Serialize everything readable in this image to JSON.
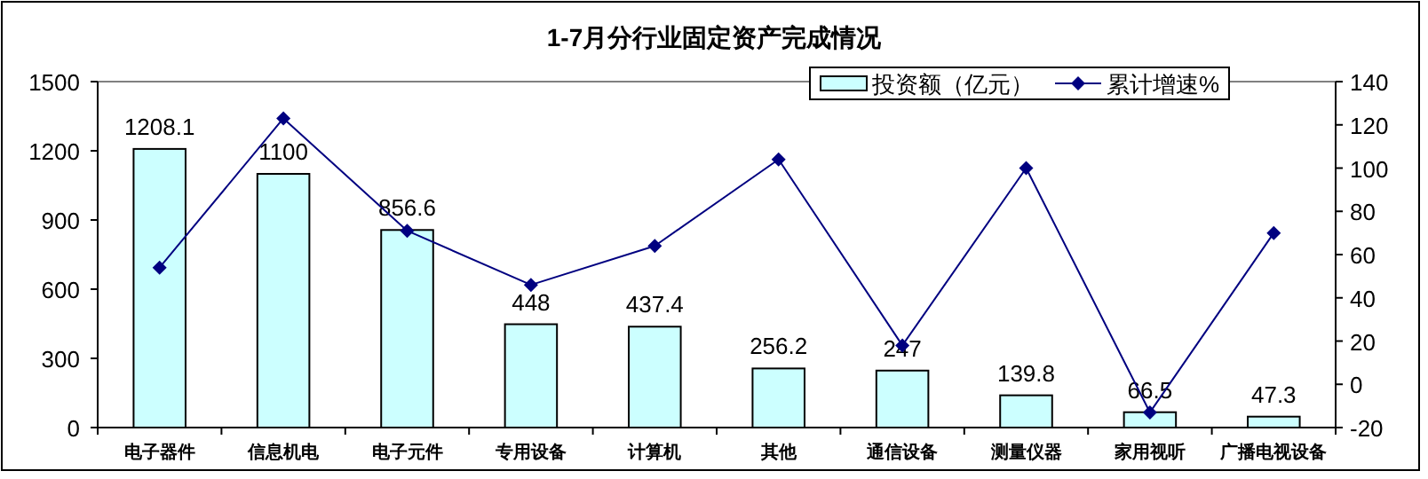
{
  "chart_data": {
    "type": "bar",
    "title": "1-7月分行业固定资产完成情况",
    "categories": [
      "电子器件",
      "信息机电",
      "电子元件",
      "专用设备",
      "计算机",
      "其他",
      "通信设备",
      "测量仪器",
      "家用视听",
      "广播电视设备"
    ],
    "series": [
      {
        "name": "投资额（亿元）",
        "color": "#ccffff",
        "values": [
          1208.1,
          1100,
          856.6,
          448,
          437.4,
          256.2,
          247,
          139.8,
          66.5,
          47.3
        ],
        "value_labels": [
          "1208.1",
          "1100",
          "856.6",
          "448",
          "437.4",
          "256.2",
          "247",
          "139.8",
          "66.5",
          "47.3"
        ]
      },
      {
        "name": "累计增速%",
        "type": "line",
        "axis": "y2",
        "color": "#000080",
        "marker": "diamond",
        "values": [
          54,
          123,
          71,
          46,
          64,
          104,
          18,
          100,
          -13,
          70
        ]
      }
    ],
    "ylim": [
      0,
      1500
    ],
    "yticks": [
      0,
      300,
      600,
      900,
      1200,
      1500
    ],
    "y2lim": [
      -20,
      140
    ],
    "y2ticks": [
      -20,
      0,
      20,
      40,
      60,
      80,
      100,
      120,
      140
    ],
    "legend": "top right"
  }
}
